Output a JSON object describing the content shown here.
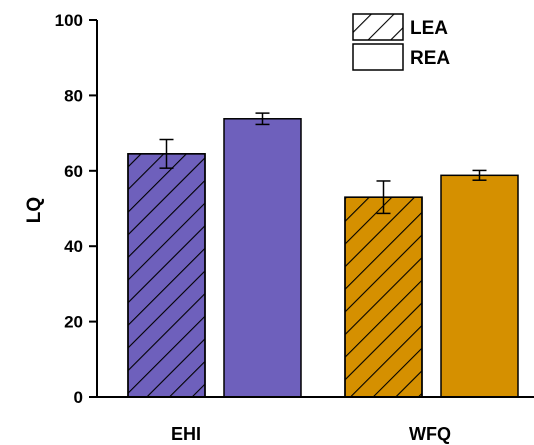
{
  "chart_data": {
    "type": "bar",
    "categories": [
      "EHI",
      "WFQ"
    ],
    "xlabel": "",
    "ylabel": "LQ",
    "ylim": [
      0,
      100
    ],
    "yticks": [
      0,
      20,
      40,
      60,
      80,
      100
    ],
    "series": [
      {
        "name": "LEA",
        "pattern": "hatched",
        "values": [
          64.5,
          53.0
        ],
        "errors": [
          3.8,
          4.3
        ]
      },
      {
        "name": "REA",
        "pattern": "solid",
        "values": [
          73.8,
          58.8
        ],
        "errors": [
          1.5,
          1.3
        ]
      }
    ],
    "category_colors": [
      "#6e60bc",
      "#d59000"
    ],
    "legend_position": "top-right",
    "grid": false
  }
}
